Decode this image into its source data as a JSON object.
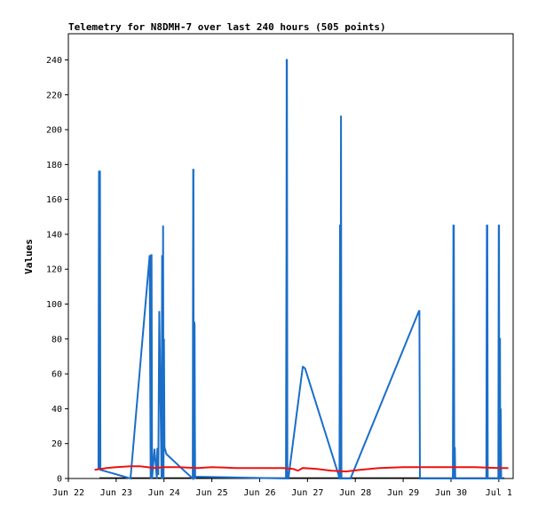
{
  "chart_data": {
    "type": "line",
    "title": "Telemetry for N8DMH-7 over last 240 hours (505 points)",
    "xlabel": "",
    "ylabel": "Values",
    "ylim": [
      0,
      255
    ],
    "y_ticks": [
      0,
      20,
      40,
      60,
      80,
      100,
      120,
      140,
      160,
      180,
      200,
      220,
      240
    ],
    "x_ticks": [
      "Jun 22",
      "Jun 23",
      "Jun 24",
      "Jun 25",
      "Jun 26",
      "Jun 27",
      "Jun 28",
      "Jun 29",
      "Jun 30",
      "Jul 1"
    ],
    "x_ticks_offset_days": [
      0,
      1,
      2,
      3,
      4,
      5,
      6,
      7,
      8,
      9
    ],
    "xlim_days": [
      0,
      9.3
    ],
    "grid": false,
    "legend": "none",
    "series": [
      {
        "color": "#1a6ec8",
        "x_days": [
          0.63,
          0.64,
          0.645,
          0.65,
          0.655,
          0.66,
          0.67,
          1.3,
          1.7,
          1.72,
          1.73,
          1.74,
          1.75,
          1.8,
          1.85,
          1.86,
          1.87,
          1.88,
          1.9,
          1.95,
          1.96,
          1.97,
          1.98,
          1.99,
          2.0,
          2.01,
          2.02,
          2.03,
          2.04,
          2.05,
          2.4,
          2.6,
          2.61,
          2.615,
          2.62,
          2.63,
          2.64,
          2.645,
          2.65,
          2.66,
          4.55,
          4.56,
          4.565,
          4.57,
          4.58,
          4.59,
          4.6,
          4.9,
          4.91,
          4.95,
          5.65,
          5.66,
          5.67,
          5.68,
          5.685,
          5.69,
          5.7,
          5.71,
          5.72,
          5.9,
          7.33,
          7.34,
          7.35,
          7.36,
          8.04,
          8.05,
          8.06,
          8.07,
          8.08,
          8.09,
          8.1,
          8.74,
          8.75,
          8.76,
          8.77,
          8.78,
          8.99,
          9.0,
          9.005,
          9.01,
          9.02,
          9.025,
          9.03,
          9.04,
          9.05,
          9.07,
          9.1
        ],
        "values": [
          5,
          176,
          176,
          5,
          176,
          176,
          5,
          0,
          128,
          0,
          128,
          128,
          0,
          17,
          0,
          17,
          17,
          2,
          96,
          0,
          128,
          0,
          145,
          0,
          80,
          18,
          17,
          16,
          15,
          14,
          5,
          0,
          177,
          177,
          0,
          90,
          88,
          32,
          0,
          1,
          0,
          137,
          240,
          240,
          1,
          0,
          0,
          64,
          64,
          63,
          2,
          0,
          0,
          145,
          145,
          0,
          208,
          0,
          0,
          0,
          96,
          96,
          0,
          0,
          0,
          145,
          145,
          0,
          18,
          0,
          0,
          0,
          145,
          145,
          0,
          0,
          0,
          145,
          145,
          0,
          80,
          80,
          0,
          40,
          0,
          0,
          0
        ]
      },
      {
        "color": "#ee1111",
        "x_days": [
          0.55,
          0.8,
          1.0,
          1.3,
          1.5,
          1.8,
          2.0,
          2.3,
          2.7,
          3.0,
          3.5,
          4.0,
          4.5,
          4.7,
          4.8,
          4.9,
          5.2,
          5.5,
          5.8,
          6.1,
          6.5,
          7.0,
          7.5,
          8.0,
          8.5,
          9.0,
          9.2
        ],
        "values": [
          5,
          6,
          6.5,
          7,
          7,
          6,
          6.5,
          6.5,
          6,
          6.5,
          6,
          6,
          6,
          5.5,
          4.5,
          6,
          5.5,
          4.5,
          4,
          5,
          6,
          6.5,
          6.5,
          6.5,
          6.5,
          6,
          6
        ]
      }
    ]
  }
}
